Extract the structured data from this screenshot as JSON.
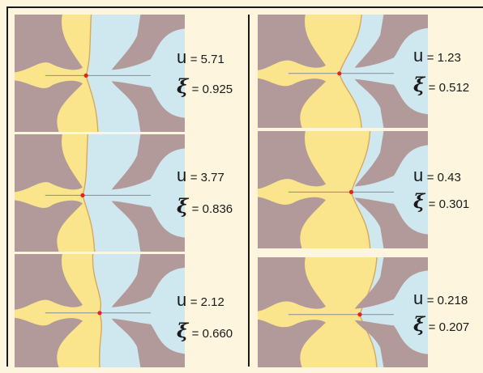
{
  "colors": {
    "phase_a": "#fbe58c",
    "phase_b": "#cfe8ef",
    "obstacle": "#b39a9a",
    "interface": "#d9a85a",
    "centerline": "#7f8f94",
    "contact_point": "#e52222",
    "background": "#fdf5de"
  },
  "panels": [
    {
      "u_symbol": "u",
      "u_value": "= 5.71",
      "xi_symbol": "ξ",
      "xi_value": "= 0.925",
      "u": 5.71,
      "xi": 0.925
    },
    {
      "u_symbol": "u",
      "u_value": "= 3.77",
      "xi_symbol": "ξ",
      "xi_value": "= 0.836",
      "u": 3.77,
      "xi": 0.836
    },
    {
      "u_symbol": "u",
      "u_value": "= 2.12",
      "xi_symbol": "ξ",
      "xi_value": "= 0.660",
      "u": 2.12,
      "xi": 0.66
    },
    {
      "u_symbol": "u",
      "u_value": "= 1.23",
      "xi_symbol": "ξ",
      "xi_value": "= 0.512",
      "u": 1.23,
      "xi": 0.512
    },
    {
      "u_symbol": "u",
      "u_value": "= 0.43",
      "xi_symbol": "ξ",
      "xi_value": "= 0.301",
      "u": 0.43,
      "xi": 0.301
    },
    {
      "u_symbol": "u",
      "u_value": "= 0.218",
      "xi_symbol": "ξ",
      "xi_value": "= 0.207",
      "u": 0.218,
      "xi": 0.207
    }
  ]
}
